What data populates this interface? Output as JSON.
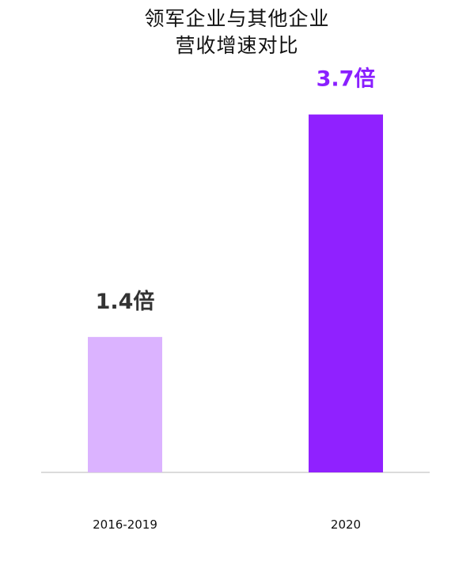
{
  "chart_data": {
    "type": "bar",
    "title_lines": [
      "领军企业与其他企业",
      "营收增速对比"
    ],
    "categories": [
      "2016-2019",
      "2020"
    ],
    "values": [
      1.4,
      3.7
    ],
    "data_labels": [
      "1.4倍",
      "3.7倍"
    ],
    "bar_colors": [
      "#dbb3ff",
      "#9021ff"
    ],
    "label_colors": [
      "#333333",
      "#8a1fff"
    ],
    "axis_color": "#cfcfcf",
    "ylim": [
      0,
      4
    ],
    "xlabel": "",
    "ylabel": "",
    "grid": false,
    "legend": "none"
  }
}
